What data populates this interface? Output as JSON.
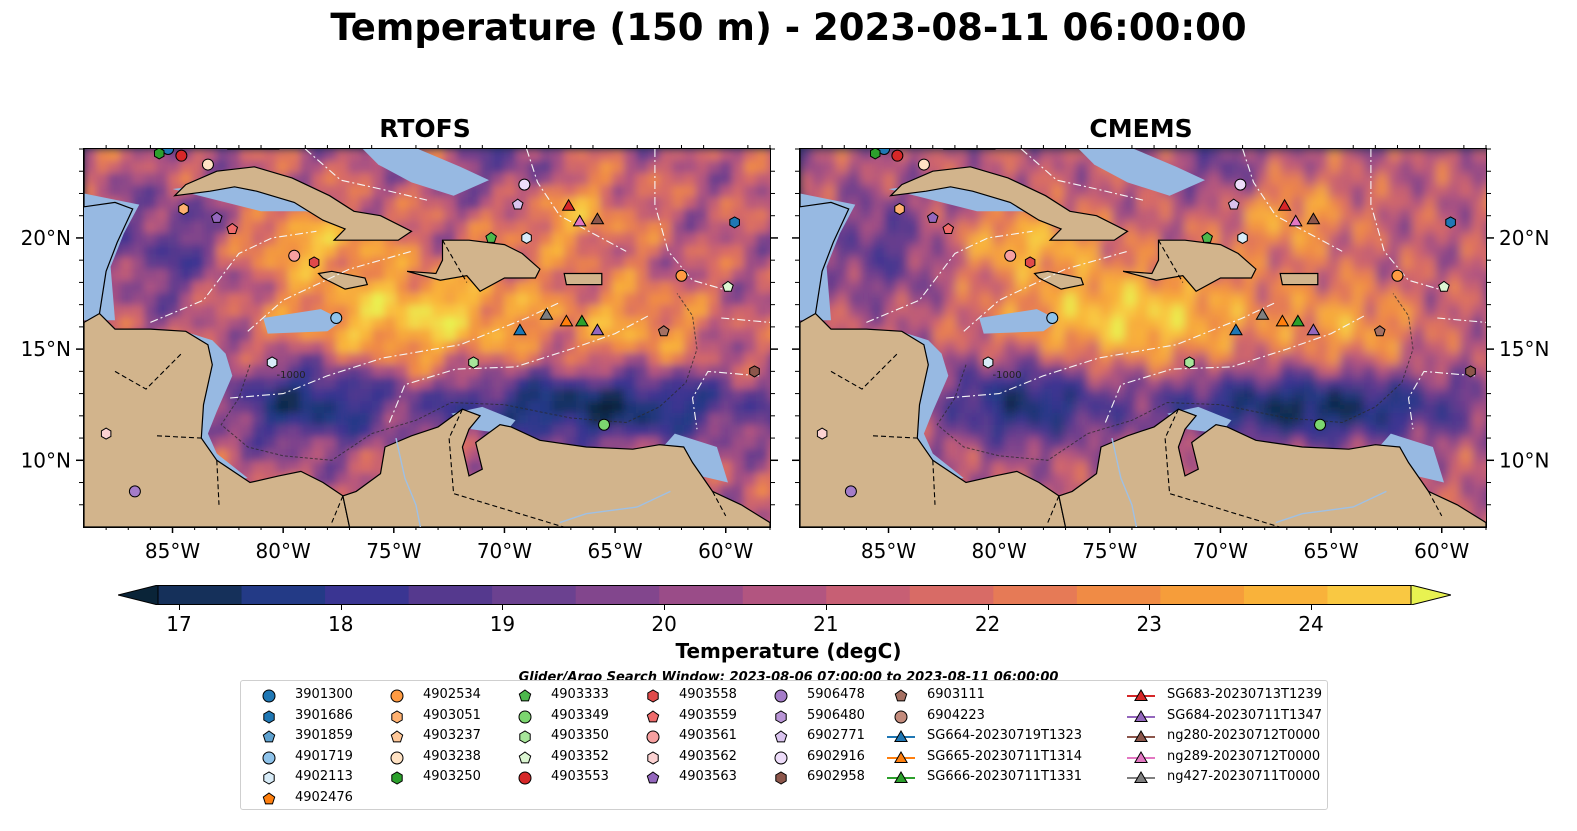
{
  "title": "Temperature (150 m) - 2023-08-11 06:00:00",
  "panels": [
    {
      "title": "RTOFS"
    },
    {
      "title": "CMEMS"
    }
  ],
  "axes": {
    "lon_ticks": [
      "85°W",
      "80°W",
      "75°W",
      "70°W",
      "65°W",
      "60°W"
    ],
    "lat_ticks": [
      "20°N",
      "15°N",
      "10°N"
    ],
    "contour_label": "-1000"
  },
  "colorbar": {
    "label": "Temperature (degC)",
    "ticks": [
      "17",
      "18",
      "19",
      "20",
      "21",
      "22",
      "23",
      "24"
    ],
    "colors": [
      "#0a2438",
      "#15305a",
      "#233a86",
      "#3a3592",
      "#55398e",
      "#6b4190",
      "#82468d",
      "#9a4c88",
      "#b25580",
      "#c75f74",
      "#d86b66",
      "#e67a56",
      "#f08b45",
      "#f69d3a",
      "#f9b23a",
      "#f9c842",
      "#e8f251"
    ]
  },
  "search_window": "Glider/Argo Search Window: 2023-08-06 07:00:00 to 2023-08-11 06:00:00",
  "legend": {
    "columns": [
      [
        {
          "label": "3901300",
          "marker": "circle",
          "color": "#1f77b4"
        },
        {
          "label": "3901686",
          "marker": "hexagon",
          "color": "#1f77b4"
        },
        {
          "label": "3901859",
          "marker": "pentagon",
          "color": "#5fa2d0"
        },
        {
          "label": "4901719",
          "marker": "circle",
          "color": "#8fc3ea"
        },
        {
          "label": "4902113",
          "marker": "hexagon",
          "color": "#d8ecf8"
        },
        {
          "label": "4902476",
          "marker": "pentagon",
          "color": "#ff7f0e"
        }
      ],
      [
        {
          "label": "4902534",
          "marker": "circle",
          "color": "#ff9b42"
        },
        {
          "label": "4903051",
          "marker": "hexagon",
          "color": "#ffb170"
        },
        {
          "label": "4903237",
          "marker": "pentagon",
          "color": "#ffc899"
        },
        {
          "label": "4903238",
          "marker": "circle",
          "color": "#ffe2c4"
        },
        {
          "label": "4903250",
          "marker": "hexagon",
          "color": "#2ca02c"
        }
      ],
      [
        {
          "label": "4903333",
          "marker": "pentagon",
          "color": "#4cb84c"
        },
        {
          "label": "4903349",
          "marker": "circle",
          "color": "#7cd66f"
        },
        {
          "label": "4903350",
          "marker": "hexagon",
          "color": "#a7e59a"
        },
        {
          "label": "4903352",
          "marker": "pentagon",
          "color": "#dcf6d2"
        },
        {
          "label": "4903553",
          "marker": "circle",
          "color": "#d62728"
        }
      ],
      [
        {
          "label": "4903558",
          "marker": "hexagon",
          "color": "#e04a4a"
        },
        {
          "label": "4903559",
          "marker": "pentagon",
          "color": "#ee6b6b"
        },
        {
          "label": "4903561",
          "marker": "circle",
          "color": "#f7a0a0"
        },
        {
          "label": "4903562",
          "marker": "hexagon",
          "color": "#fcd2d2"
        },
        {
          "label": "4903563",
          "marker": "pentagon",
          "color": "#9467bd"
        }
      ],
      [
        {
          "label": "5906478",
          "marker": "circle",
          "color": "#a47cc8"
        },
        {
          "label": "5906480",
          "marker": "hexagon",
          "color": "#b995d6"
        },
        {
          "label": "6902771",
          "marker": "pentagon",
          "color": "#d9c3ee"
        },
        {
          "label": "6902916",
          "marker": "circle",
          "color": "#eddcf9"
        },
        {
          "label": "6902958",
          "marker": "hexagon",
          "color": "#8c564b"
        }
      ],
      [
        {
          "label": "6903111",
          "marker": "pentagon",
          "color": "#a57062"
        },
        {
          "label": "6904223",
          "marker": "circle",
          "color": "#c38b7c"
        },
        {
          "label": "SG664-20230719T1323",
          "marker": "triangle-line",
          "color": "#1f77b4"
        },
        {
          "label": "SG665-20230711T1314",
          "marker": "triangle-line",
          "color": "#ff7f0e"
        },
        {
          "label": "SG666-20230711T1331",
          "marker": "triangle-line",
          "color": "#2ca02c"
        }
      ],
      [
        {
          "label": "SG683-20230713T1239",
          "marker": "triangle-line",
          "color": "#d62728"
        },
        {
          "label": "SG684-20230711T1347",
          "marker": "triangle-line",
          "color": "#9467bd"
        },
        {
          "label": "ng280-20230712T0000",
          "marker": "triangle-line",
          "color": "#8c564b"
        },
        {
          "label": "ng289-20230712T0000",
          "marker": "triangle-line",
          "color": "#e377c2"
        },
        {
          "label": "ng427-20230711T0000",
          "marker": "triangle-line",
          "color": "#7f7f7f"
        }
      ]
    ]
  },
  "observations": [
    {
      "id": "3901300",
      "lon": -85.2,
      "lat": 24.0
    },
    {
      "id": "3901686",
      "lon": -59.6,
      "lat": 20.7
    },
    {
      "id": "4903250",
      "lon": -85.6,
      "lat": 23.8
    },
    {
      "id": "4903553",
      "lon": -84.6,
      "lat": 23.7
    },
    {
      "id": "4903238",
      "lon": -83.4,
      "lat": 23.3
    },
    {
      "id": "4903051",
      "lon": -84.5,
      "lat": 21.3
    },
    {
      "id": "4903563",
      "lon": -83.0,
      "lat": 20.9
    },
    {
      "id": "4903559",
      "lon": -82.3,
      "lat": 20.4
    },
    {
      "id": "4903561",
      "lon": -79.5,
      "lat": 19.2
    },
    {
      "id": "4903558",
      "lon": -78.6,
      "lat": 18.9
    },
    {
      "id": "6902916",
      "lon": -69.1,
      "lat": 22.4
    },
    {
      "id": "6902771",
      "lon": -69.4,
      "lat": 21.5
    },
    {
      "id": "4903333",
      "lon": -70.6,
      "lat": 20.0
    },
    {
      "id": "4902113",
      "lon": -69.0,
      "lat": 20.0
    },
    {
      "id": "4902534",
      "lon": -62.0,
      "lat": 18.3
    },
    {
      "id": "4903352",
      "lon": -59.9,
      "lat": 17.8
    },
    {
      "id": "4901719",
      "lon": -77.6,
      "lat": 16.4
    },
    {
      "id": "4902113b",
      "lon": -80.5,
      "lat": 14.4
    },
    {
      "id": "4903350",
      "lon": -71.4,
      "lat": 14.4
    },
    {
      "id": "6903111",
      "lon": -62.8,
      "lat": 15.8
    },
    {
      "id": "6902958",
      "lon": -58.7,
      "lat": 14.0
    },
    {
      "id": "4903349",
      "lon": -65.5,
      "lat": 11.6
    },
    {
      "id": "4903562",
      "lon": -88.0,
      "lat": 11.2
    },
    {
      "id": "5906478",
      "lon": -86.7,
      "lat": 8.6
    }
  ],
  "gliders": [
    {
      "id": "SG683-20230713T1239",
      "lon": -67.1,
      "lat": 21.4
    },
    {
      "id": "ng280-20230712T0000",
      "lon": -65.8,
      "lat": 20.8
    },
    {
      "id": "ng289-20230712T0000",
      "lon": -66.6,
      "lat": 20.7
    },
    {
      "id": "SG664-20230719T1323",
      "lon": -69.3,
      "lat": 15.8
    },
    {
      "id": "ng427-20230711T0000",
      "lon": -68.1,
      "lat": 16.5
    },
    {
      "id": "SG665-20230711T1314",
      "lon": -67.2,
      "lat": 16.2
    },
    {
      "id": "SG666-20230711T1331",
      "lon": -66.5,
      "lat": 16.2
    },
    {
      "id": "SG684-20230711T1347",
      "lon": -65.8,
      "lat": 15.8
    }
  ],
  "colors": {
    "land": "#d2b48c",
    "shelf": "#97b9e2",
    "deep": "#0b2236",
    "coast": "#000000"
  }
}
